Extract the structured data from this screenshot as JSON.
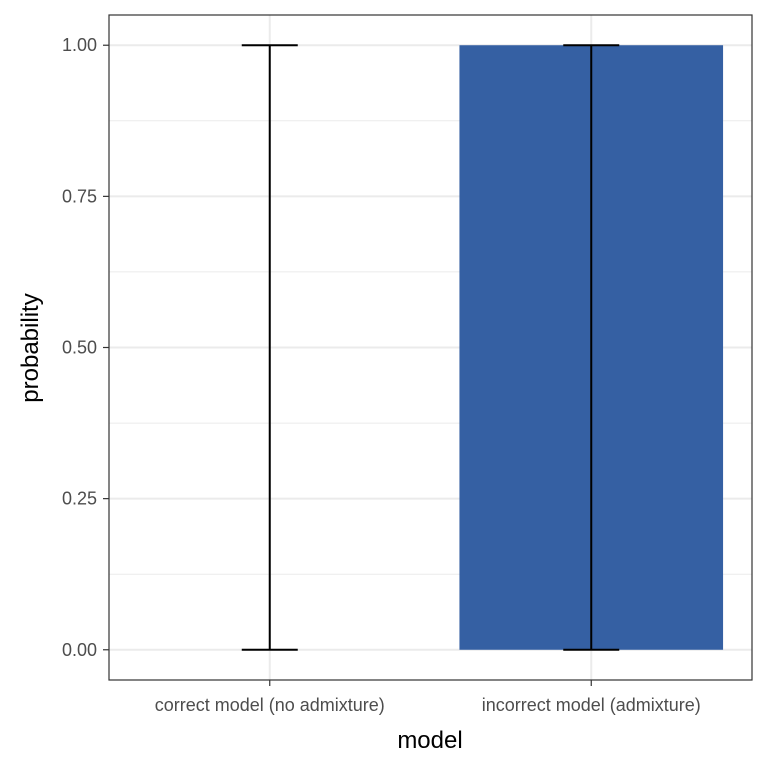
{
  "chart_data": {
    "type": "bar",
    "categories": [
      "correct model (no admixture)",
      "incorrect model (admixture)"
    ],
    "values": [
      0.0,
      1.0
    ],
    "error_bars": [
      {
        "lower": 0.0,
        "upper": 1.0
      },
      {
        "lower": 0.0,
        "upper": 1.0
      }
    ],
    "xlabel": "model",
    "ylabel": "probability",
    "ylim": [
      -0.05,
      1.05
    ],
    "yticks": [
      0.0,
      0.25,
      0.5,
      0.75,
      1.0
    ],
    "ytick_labels": [
      "0.00",
      "0.25",
      "0.50",
      "0.75",
      "1.00"
    ],
    "grid": true,
    "colors": {
      "bar": "#3560A3",
      "error_bar": "#000000",
      "grid": "#EBEBEB",
      "panel_border": "#333333",
      "tick_label": "#4D4D4D"
    }
  }
}
